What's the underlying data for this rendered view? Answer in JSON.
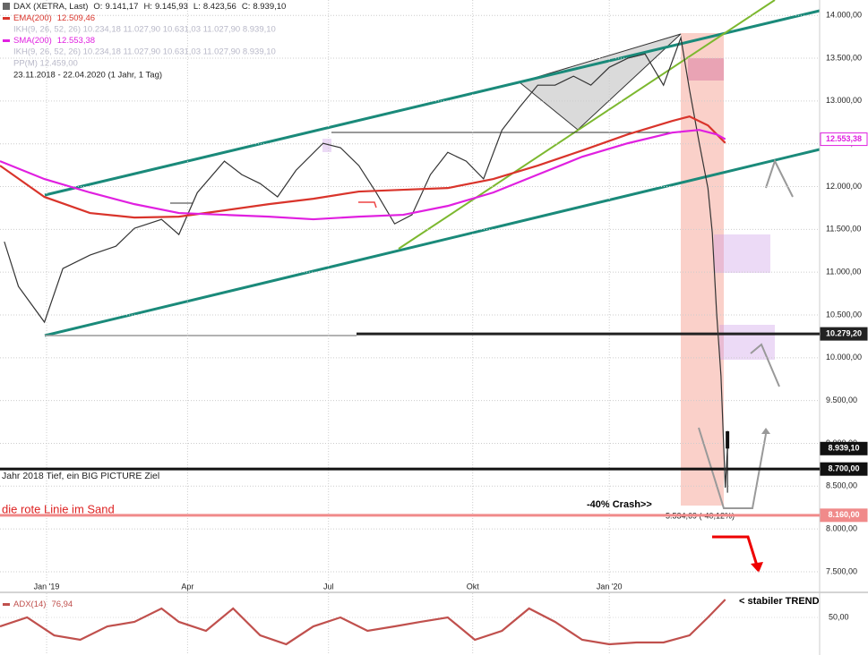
{
  "chart_data": [
    {
      "type": "line",
      "title": "DAX (XETRA, Last)",
      "last_candle": {
        "labels": [
          "O:",
          "H:",
          "L:",
          "C:"
        ],
        "values": [
          9141.17,
          9145.93,
          8423.56,
          8939.1
        ],
        "value_labels": [
          "9.141,17",
          "9.145,93",
          "8.423,56",
          "8.939,10"
        ],
        "x": 68.3
      },
      "overlay_legend": [
        "IKH(9, 26, 52, 26)  10.234,18  11.027,90  10.631,03  11.027,90  8.939,10",
        "IKH(9, 26, 52, 26)  10.234,18  11.027,90  10.631,03  11.027,90  8.939,10",
        "PP(M)  12.459,00"
      ],
      "period": "23.11.2018 - 22.04.2020  (1 Jahr, 1 Tag)",
      "xlim": [
        1.2,
        76.8
      ],
      "ylim": [
        7280,
        14180
      ],
      "xticks": [
        {
          "value": 5.5,
          "label": "Jan '19"
        },
        {
          "value": 18.5,
          "label": "Apr"
        },
        {
          "value": 31.5,
          "label": "Jul"
        },
        {
          "value": 44.8,
          "label": "Okt"
        },
        {
          "value": 57.4,
          "label": "Jan '20"
        }
      ],
      "yticks": [
        {
          "value": 7500,
          "label": "7.500,00"
        },
        {
          "value": 8000,
          "label": "8.000,00"
        },
        {
          "value": 8500,
          "label": "8.500,00"
        },
        {
          "value": 9000,
          "label": "9.000,00"
        },
        {
          "value": 9500,
          "label": "9.500,00"
        },
        {
          "value": 10000,
          "label": "10.000,00"
        },
        {
          "value": 10500,
          "label": "10.500,00"
        },
        {
          "value": 11000,
          "label": "11.000,00"
        },
        {
          "value": 11500,
          "label": "11.500,00"
        },
        {
          "value": 12000,
          "label": "12.000,00"
        },
        {
          "value": 12500,
          "label": "12.500,00"
        },
        {
          "value": 13000,
          "label": "13.000,00"
        },
        {
          "value": 13500,
          "label": "13.500,00"
        },
        {
          "value": 14000,
          "label": "14.000,00"
        }
      ],
      "grid": true,
      "series": [
        {
          "color": "#333333",
          "x": [
            1.6,
            2.9,
            5.3,
            7.0,
            9.5,
            11.9,
            13.6,
            16.1,
            17.7,
            19.4,
            21.9,
            23.5,
            25.2,
            26.8,
            28.5,
            31.0,
            32.6,
            34.3,
            35.9,
            37.6,
            39.2,
            40.9,
            42.5,
            44.2,
            45.8,
            47.5,
            49.1,
            50.8,
            52.4,
            54.1,
            55.7,
            57.4,
            59.1,
            60.7,
            62.4,
            64.0,
            64.8,
            65.7,
            66.5,
            66.9,
            67.3,
            67.7,
            68.1,
            68.3
          ],
          "values": [
            11356,
            10834,
            10416,
            11043,
            11200,
            11304,
            11513,
            11617,
            11440,
            11930,
            12297,
            12140,
            12035,
            11880,
            12190,
            12506,
            12455,
            12245,
            11930,
            11565,
            11670,
            12140,
            12400,
            12297,
            12090,
            12660,
            12924,
            13185,
            13185,
            13290,
            13185,
            13394,
            13500,
            13550,
            13185,
            13740,
            13130,
            12506,
            11980,
            11460,
            10520,
            9790,
            8483,
            8939.1
          ]
        },
        {
          "name": "EMA(200)",
          "color": "#d9342b",
          "last_label": "12.509,46",
          "x": [
            1.2,
            5.3,
            9.5,
            13.6,
            17.7,
            21.9,
            26.0,
            30.1,
            34.3,
            38.4,
            42.5,
            46.7,
            50.8,
            54.9,
            59.1,
            63.2,
            64.8,
            66.5,
            68.1
          ],
          "values": [
            12245,
            11879,
            11691,
            11638,
            11649,
            11722,
            11795,
            11858,
            11942,
            11963,
            11983,
            12088,
            12245,
            12422,
            12610,
            12767,
            12819,
            12715,
            12509.46
          ]
        },
        {
          "name": "SMA(200)",
          "color": "#e020e0",
          "last_label": "12.553,38",
          "x": [
            1.2,
            5.3,
            9.5,
            13.6,
            17.7,
            21.9,
            26.0,
            30.1,
            34.3,
            38.4,
            42.5,
            46.7,
            50.8,
            54.9,
            59.1,
            63.2,
            65.7,
            67.3,
            68.1
          ],
          "values": [
            12297,
            12088,
            11931,
            11795,
            11691,
            11670,
            11649,
            11618,
            11649,
            11670,
            11774,
            11931,
            12140,
            12349,
            12506,
            12631,
            12662,
            12610,
            12553.38
          ]
        }
      ],
      "levels": [
        {
          "value": 10279.2,
          "label": "10.279,20",
          "color": "#222222"
        },
        {
          "value": 8700,
          "label": "8.700,00",
          "color": "#111111"
        },
        {
          "value": 8160,
          "label": "8.160,00",
          "color": "#f08a8a"
        }
      ],
      "annotations": [
        "Jahr 2018 Tief, ein BIG PICTURE Ziel",
        "die rote Linie im Sand",
        "-40% Crash>>",
        "-5.534,69 (-40,12%)"
      ]
    },
    {
      "type": "line",
      "ylim": [
        -6.6,
        86.4
      ],
      "yticks": [
        {
          "value": 50,
          "label": "50,00"
        }
      ],
      "annotation": "< stabiler TREND",
      "series": [
        {
          "name": "ADX(14)",
          "color": "#c0504d",
          "last_label": "76,94",
          "x": [
            1.2,
            3.7,
            6.2,
            8.6,
            11.1,
            13.6,
            16.1,
            17.7,
            20.2,
            22.7,
            25.2,
            27.6,
            30.1,
            32.6,
            35.1,
            37.6,
            40.0,
            42.5,
            45.0,
            47.5,
            50.0,
            52.4,
            54.9,
            57.4,
            59.9,
            62.4,
            64.8,
            66.5,
            68.1
          ],
          "values": [
            36.5,
            50,
            23,
            16.3,
            36.5,
            43.3,
            63.5,
            43.3,
            29.8,
            63.5,
            23,
            9.6,
            36.5,
            50,
            29.8,
            36.5,
            43.3,
            50,
            16.3,
            29.8,
            63.5,
            43.3,
            16.3,
            9.6,
            12.3,
            12.3,
            23,
            50,
            76.94
          ]
        }
      ]
    }
  ]
}
